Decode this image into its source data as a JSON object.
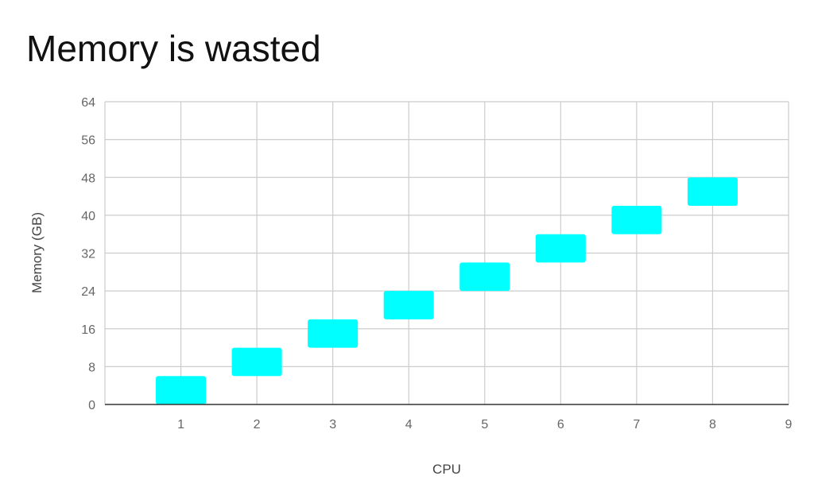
{
  "chart_data": {
    "type": "floating-bar",
    "title": "Memory is wasted",
    "xlabel": "CPU",
    "ylabel": "Memory (GB)",
    "x_ticks": [
      "1",
      "2",
      "3",
      "4",
      "5",
      "6",
      "7",
      "8",
      "9"
    ],
    "y_ticks": [
      "0",
      "8",
      "16",
      "24",
      "32",
      "40",
      "48",
      "56",
      "64"
    ],
    "xlim": [
      0,
      9
    ],
    "ylim": [
      0,
      64
    ],
    "grid": true,
    "legend": "none",
    "bar_color": "#00FFFF",
    "grid_color": "#CCCCCC",
    "axis_color": "#333333",
    "bars": [
      {
        "x": 1,
        "low": 0,
        "high": 6
      },
      {
        "x": 2,
        "low": 6,
        "high": 12
      },
      {
        "x": 3,
        "low": 12,
        "high": 18
      },
      {
        "x": 4,
        "low": 18,
        "high": 24
      },
      {
        "x": 5,
        "low": 24,
        "high": 30
      },
      {
        "x": 6,
        "low": 30,
        "high": 36
      },
      {
        "x": 7,
        "low": 36,
        "high": 42
      },
      {
        "x": 8,
        "low": 42,
        "high": 48
      }
    ]
  }
}
